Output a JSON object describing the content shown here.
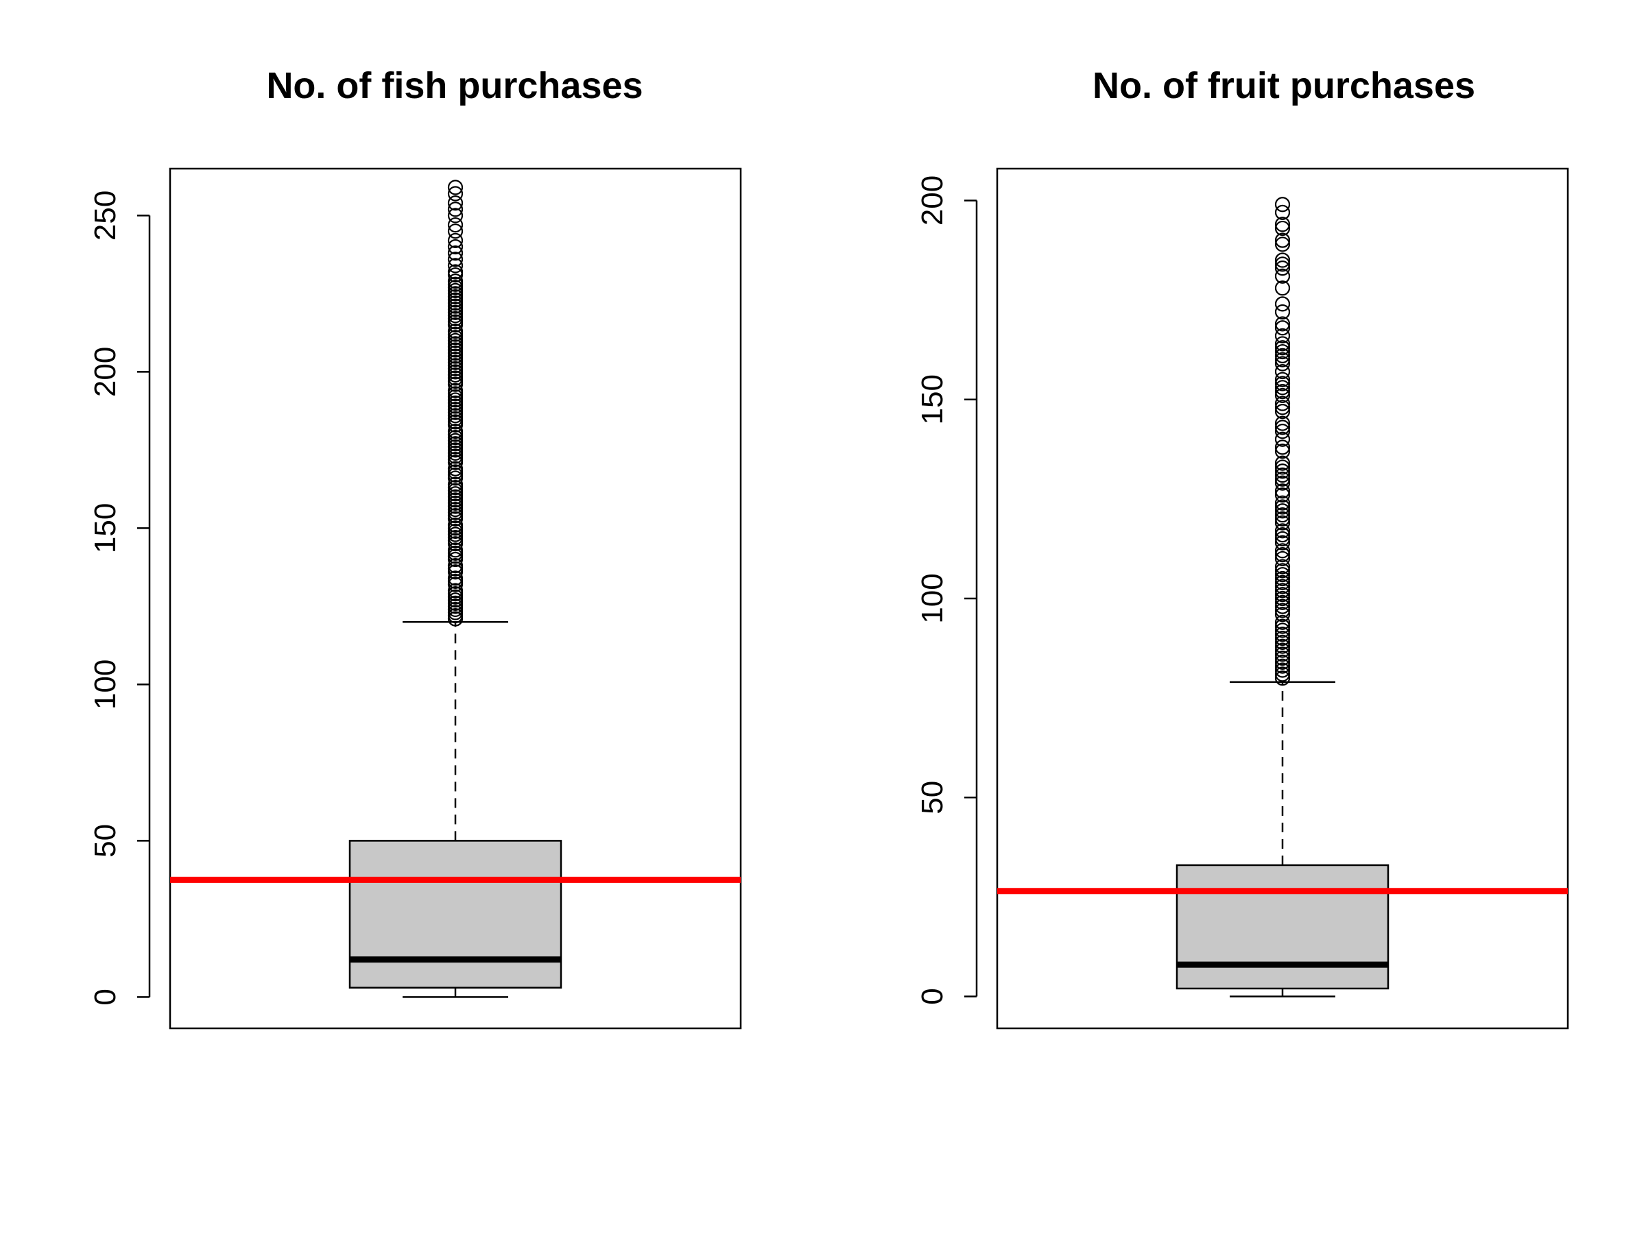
{
  "chart_data": [
    {
      "type": "boxplot",
      "title": "No. of fish purchases",
      "xlabel": "",
      "ylabel": "",
      "ylim": [
        -10,
        265
      ],
      "yticks": [
        0,
        50,
        100,
        150,
        200,
        250
      ],
      "grid": false,
      "box": {
        "min": 0,
        "q1": 3,
        "median": 12,
        "q3": 50,
        "upper_whisker": 120,
        "fill": "#c8c8c8"
      },
      "outliers": [
        121,
        122,
        123,
        124,
        125,
        126,
        127,
        128,
        129,
        130,
        132,
        133,
        134,
        136,
        137,
        138,
        140,
        141,
        142,
        143,
        145,
        146,
        147,
        148,
        149,
        150,
        151,
        153,
        154,
        155,
        156,
        157,
        158,
        159,
        160,
        161,
        162,
        163,
        164,
        166,
        167,
        168,
        169,
        171,
        172,
        173,
        174,
        175,
        176,
        177,
        178,
        179,
        180,
        181,
        183,
        184,
        185,
        186,
        187,
        188,
        189,
        190,
        191,
        192,
        193,
        194,
        196,
        197,
        198,
        199,
        200,
        201,
        202,
        203,
        204,
        205,
        206,
        207,
        208,
        209,
        210,
        211,
        212,
        213,
        215,
        216,
        217,
        218,
        219,
        220,
        221,
        222,
        223,
        224,
        225,
        226,
        227,
        228,
        229,
        231,
        232,
        234,
        236,
        238,
        240,
        242,
        245,
        247,
        250,
        252,
        254,
        257,
        259
      ],
      "reference_line": {
        "value": 37.5,
        "color": "#ff0000"
      }
    },
    {
      "type": "boxplot",
      "title": "No. of fruit purchases",
      "xlabel": "",
      "ylabel": "",
      "ylim": [
        -8,
        208
      ],
      "yticks": [
        0,
        50,
        100,
        150,
        200
      ],
      "grid": false,
      "box": {
        "min": 0,
        "q1": 2,
        "median": 8,
        "q3": 33,
        "upper_whisker": 79,
        "fill": "#c8c8c8"
      },
      "outliers": [
        80,
        81,
        82,
        83,
        84,
        85,
        86,
        87,
        88,
        89,
        90,
        91,
        92,
        93,
        94,
        96,
        97,
        98,
        99,
        100,
        101,
        102,
        103,
        104,
        105,
        106,
        107,
        108,
        110,
        111,
        112,
        114,
        115,
        116,
        117,
        119,
        120,
        121,
        122,
        123,
        124,
        126,
        127,
        129,
        130,
        131,
        132,
        133,
        134,
        137,
        138,
        140,
        142,
        143,
        144,
        147,
        148,
        149,
        151,
        152,
        153,
        154,
        155,
        157,
        159,
        160,
        161,
        162,
        163,
        164,
        166,
        168,
        169,
        172,
        174,
        178,
        181,
        183,
        184,
        185,
        189,
        190,
        193,
        194,
        197,
        199
      ],
      "reference_line": {
        "value": 26.5,
        "color": "#ff0000"
      }
    }
  ]
}
